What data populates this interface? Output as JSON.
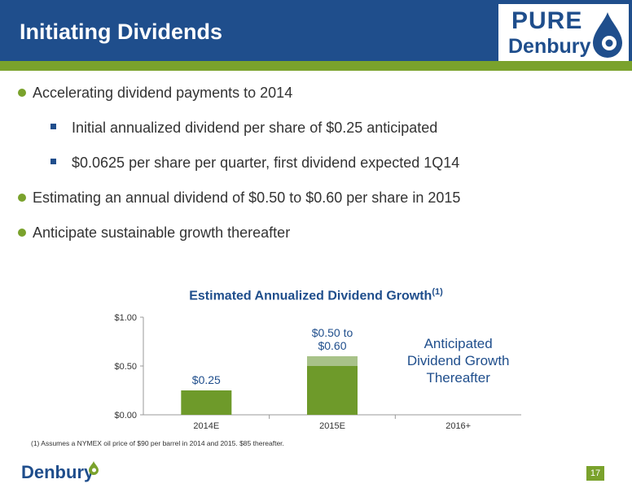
{
  "header": {
    "title": "Initiating Dividends",
    "logo_top": "PURE",
    "logo_bottom": "Denbury"
  },
  "bullets": [
    {
      "level": 1,
      "text": "Accelerating dividend payments to 2014"
    },
    {
      "level": 2,
      "text": "Initial annualized dividend per share of $0.25 anticipated"
    },
    {
      "level": 2,
      "text": "$0.0625 per share per quarter, first dividend expected 1Q14"
    },
    {
      "level": 1,
      "text": "Estimating an annual dividend of $0.50 to $0.60 per share in 2015"
    },
    {
      "level": 1,
      "text": "Anticipate sustainable growth thereafter"
    }
  ],
  "chart_data": {
    "type": "bar",
    "title": "Estimated Annualized Dividend Growth",
    "title_superscript": "(1)",
    "categories": [
      "2014E",
      "2015E",
      "2016+"
    ],
    "series": [
      {
        "values": [
          0.25,
          0.5,
          null
        ]
      },
      {
        "values": [
          0,
          0.1,
          null
        ]
      }
    ],
    "data_labels": [
      "$0.25",
      "$0.50 to\n$0.60",
      ""
    ],
    "annotation": "Anticipated\nDividend Growth\nThereafter",
    "yticks": [
      "$0.00",
      "$0.50",
      "$1.00"
    ],
    "ylim": [
      0,
      1.0
    ],
    "colors": [
      "#6e9a2a",
      "#a8c289"
    ],
    "grid": false
  },
  "footnote": "(1)   Assumes a NYMEX oil price of $90 per barrel in 2014 and 2015. $85 thereafter.",
  "footer": {
    "logo": "Denbury",
    "page_number": "17"
  },
  "colors": {
    "brand_blue": "#1f4e8c",
    "brand_green": "#7aa22c"
  }
}
